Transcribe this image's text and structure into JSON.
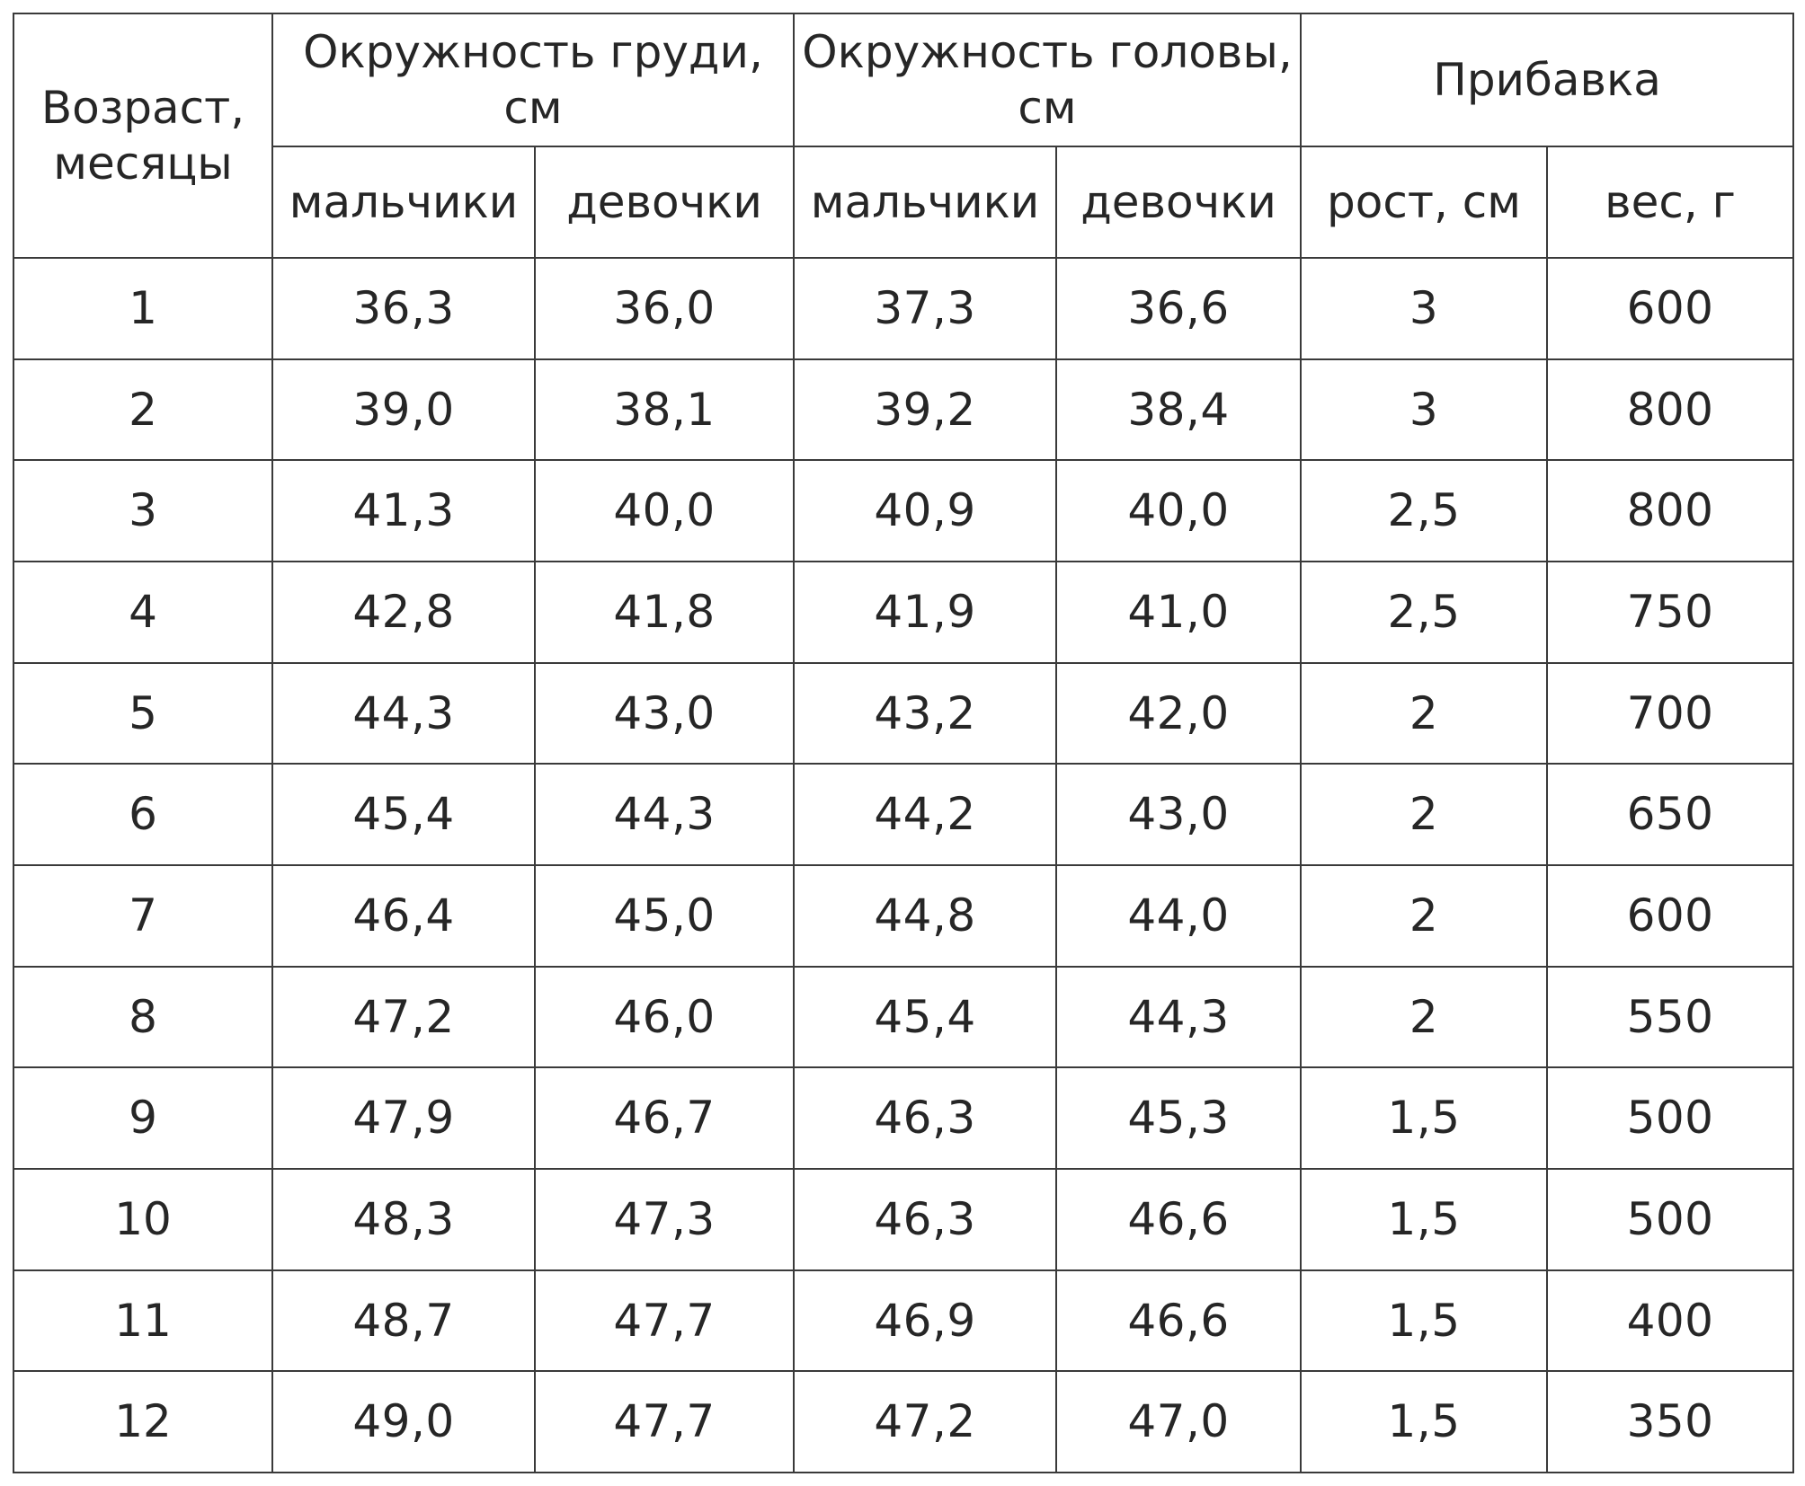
{
  "table": {
    "headers": {
      "age": "Возраст, месяцы",
      "chest": "Окружность груди, см",
      "head": "Окружность головы, см",
      "gain": "Прибавка",
      "boys": "мальчики",
      "girls": "девочки",
      "height": "рост, см",
      "weight": "вес, г"
    },
    "rows": [
      {
        "age": "1",
        "chest_boys": "36,3",
        "chest_girls": "36,0",
        "head_boys": "37,3",
        "head_girls": "36,6",
        "height_gain": "3",
        "weight_gain": "600"
      },
      {
        "age": "2",
        "chest_boys": "39,0",
        "chest_girls": "38,1",
        "head_boys": "39,2",
        "head_girls": "38,4",
        "height_gain": "3",
        "weight_gain": "800"
      },
      {
        "age": "3",
        "chest_boys": "41,3",
        "chest_girls": "40,0",
        "head_boys": "40,9",
        "head_girls": "40,0",
        "height_gain": "2,5",
        "weight_gain": "800"
      },
      {
        "age": "4",
        "chest_boys": "42,8",
        "chest_girls": "41,8",
        "head_boys": "41,9",
        "head_girls": "41,0",
        "height_gain": "2,5",
        "weight_gain": "750"
      },
      {
        "age": "5",
        "chest_boys": "44,3",
        "chest_girls": "43,0",
        "head_boys": "43,2",
        "head_girls": "42,0",
        "height_gain": "2",
        "weight_gain": "700"
      },
      {
        "age": "6",
        "chest_boys": "45,4",
        "chest_girls": "44,3",
        "head_boys": "44,2",
        "head_girls": "43,0",
        "height_gain": "2",
        "weight_gain": "650"
      },
      {
        "age": "7",
        "chest_boys": "46,4",
        "chest_girls": "45,0",
        "head_boys": "44,8",
        "head_girls": "44,0",
        "height_gain": "2",
        "weight_gain": "600"
      },
      {
        "age": "8",
        "chest_boys": "47,2",
        "chest_girls": "46,0",
        "head_boys": "45,4",
        "head_girls": "44,3",
        "height_gain": "2",
        "weight_gain": "550"
      },
      {
        "age": "9",
        "chest_boys": "47,9",
        "chest_girls": "46,7",
        "head_boys": "46,3",
        "head_girls": "45,3",
        "height_gain": "1,5",
        "weight_gain": "500"
      },
      {
        "age": "10",
        "chest_boys": "48,3",
        "chest_girls": "47,3",
        "head_boys": "46,3",
        "head_girls": "46,6",
        "height_gain": "1,5",
        "weight_gain": "500"
      },
      {
        "age": "11",
        "chest_boys": "48,7",
        "chest_girls": "47,7",
        "head_boys": "46,9",
        "head_girls": "46,6",
        "height_gain": "1,5",
        "weight_gain": "400"
      },
      {
        "age": "12",
        "chest_boys": "49,0",
        "chest_girls": "47,7",
        "head_boys": "47,2",
        "head_girls": "47,0",
        "height_gain": "1,5",
        "weight_gain": "350"
      }
    ]
  }
}
